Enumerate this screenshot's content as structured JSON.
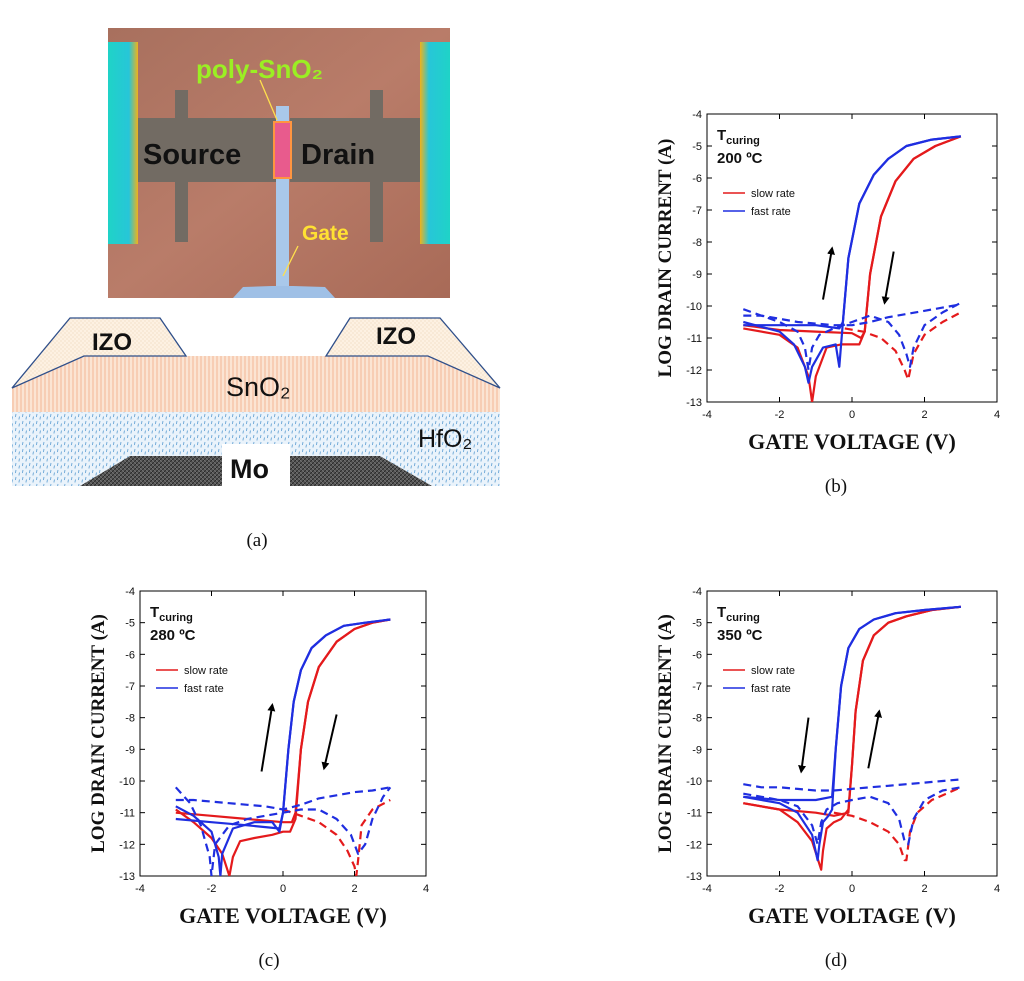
{
  "panel_a": {
    "micrograph": {
      "label_poly": "poly-SnO₂",
      "label_source": "Source",
      "label_drain": "Drain",
      "label_gate": "Gate"
    },
    "cross_section": {
      "label_izo_left": "IZO",
      "label_izo_right": "IZO",
      "label_sno2": "SnO₂",
      "label_hfo2": "HfO₂",
      "label_mo": "Mo"
    },
    "caption": "(a)"
  },
  "colors": {
    "slow": "#e41a1c",
    "fast": "#1f2ee0"
  },
  "chart_data": [
    {
      "id": "b",
      "type": "line",
      "caption": "(b)",
      "xlabel": "GATE VOLTAGE (V)",
      "ylabel": "LOG DRAIN CURRENT (A)",
      "xlim": [
        -4,
        4
      ],
      "ylim": [
        -13,
        -4
      ],
      "xticks": [
        "-4",
        "-2",
        "0",
        "2",
        "4"
      ],
      "yticks": [
        "-4",
        "-5",
        "-6",
        "-7",
        "-8",
        "-9",
        "-10",
        "-11",
        "-12",
        "-13"
      ],
      "annotation_title": "T",
      "annotation_sub": "curing",
      "annotation_temp": "200 ºC",
      "legend": [
        "slow rate",
        "fast rate"
      ],
      "arrows": [
        {
          "from": [
            -0.8,
            -9.8
          ],
          "to": [
            -0.55,
            -8.2
          ]
        },
        {
          "from": [
            1.15,
            -8.3
          ],
          "to": [
            0.9,
            -9.9
          ]
        }
      ],
      "series": [
        {
          "name": "slow up",
          "style": "solid",
          "color": "slow",
          "x": [
            -3,
            -2,
            -1.5,
            -1.2,
            -1.1,
            -1.0,
            -0.7,
            -0.3,
            0,
            0.2,
            0.35,
            0.5,
            0.8,
            1.2,
            1.7,
            2.3,
            3
          ],
          "y": [
            -10.7,
            -10.9,
            -11.3,
            -12.2,
            -13,
            -12.2,
            -11.3,
            -11.2,
            -11.2,
            -11.2,
            -10.8,
            -9,
            -7.2,
            -6.1,
            -5.4,
            -5.0,
            -4.7
          ]
        },
        {
          "name": "slow down",
          "style": "solid",
          "color": "slow",
          "x": [
            3,
            2.3,
            1.7,
            1.2,
            0.8,
            0.5,
            0.35,
            0.25,
            0,
            -1,
            -2,
            -3
          ],
          "y": [
            -4.7,
            -5.0,
            -5.4,
            -6.1,
            -7.2,
            -9,
            -10.8,
            -11.0,
            -10.85,
            -10.8,
            -10.75,
            -10.6
          ]
        },
        {
          "name": "slow dashed",
          "style": "dashed",
          "color": "slow",
          "x": [
            -0.2,
            0.3,
            0.8,
            1.2,
            1.45,
            1.55,
            1.7,
            2.0,
            2.5,
            3
          ],
          "y": [
            -10.7,
            -10.8,
            -11.0,
            -11.4,
            -12.0,
            -12.3,
            -11.5,
            -10.9,
            -10.5,
            -10.2
          ]
        },
        {
          "name": "fast up",
          "style": "solid",
          "color": "fast",
          "x": [
            -3,
            -2,
            -1.6,
            -1.3,
            -1.2,
            -1.1,
            -0.8,
            -0.45,
            -0.35,
            -0.25,
            -0.1,
            0.2,
            0.6,
            1,
            1.5,
            2.2,
            3
          ],
          "y": [
            -10.5,
            -10.8,
            -11.2,
            -11.9,
            -12.4,
            -11.9,
            -11.3,
            -11.2,
            -11.9,
            -10.5,
            -8.5,
            -6.8,
            -5.9,
            -5.4,
            -5.0,
            -4.8,
            -4.7
          ]
        },
        {
          "name": "fast down",
          "style": "solid",
          "color": "fast",
          "x": [
            3,
            2.2,
            1.5,
            1,
            0.6,
            0.2,
            -0.1,
            -0.25,
            -0.35,
            -1,
            -2,
            -3
          ],
          "y": [
            -4.7,
            -4.8,
            -5.0,
            -5.4,
            -5.9,
            -6.8,
            -8.5,
            -10.5,
            -10.7,
            -10.6,
            -10.6,
            -10.6
          ]
        },
        {
          "name": "fast dashed",
          "style": "dashed",
          "color": "fast",
          "x": [
            -3,
            -2.5,
            -2,
            -1.5,
            -1.3,
            -1.2,
            -1.1,
            -0.9,
            -0.5,
            0,
            0.5,
            1,
            1.3,
            1.5,
            1.6,
            1.7,
            2.0,
            2.5,
            3
          ],
          "y": [
            -10.1,
            -10.3,
            -10.5,
            -10.8,
            -11.3,
            -12.0,
            -11.3,
            -10.9,
            -10.7,
            -10.5,
            -10.3,
            -10.5,
            -10.9,
            -11.5,
            -11.9,
            -11.3,
            -10.6,
            -10.2,
            -9.9
          ]
        },
        {
          "name": "fast dashed top",
          "style": "dashed",
          "color": "fast",
          "x": [
            -3,
            -2.5,
            -2,
            -1.5,
            -1,
            -0.5,
            0,
            0.5,
            1,
            1.5,
            2,
            2.5,
            3
          ],
          "y": [
            -10.3,
            -10.3,
            -10.4,
            -10.5,
            -10.55,
            -10.6,
            -10.6,
            -10.5,
            -10.35,
            -10.25,
            -10.15,
            -10.05,
            -9.95
          ]
        }
      ]
    },
    {
      "id": "c",
      "type": "line",
      "caption": "(c)",
      "xlabel": "GATE VOLTAGE (V)",
      "ylabel": "LOG DRAIN CURRENT (A)",
      "xlim": [
        -4,
        4
      ],
      "ylim": [
        -13,
        -4
      ],
      "xticks": [
        "-4",
        "-2",
        "0",
        "2",
        "4"
      ],
      "yticks": [
        "-4",
        "-5",
        "-6",
        "-7",
        "-8",
        "-9",
        "-10",
        "-11",
        "-12",
        "-13"
      ],
      "annotation_title": "T",
      "annotation_sub": "curing",
      "annotation_temp": "280 ºC",
      "legend": [
        "slow rate",
        "fast rate"
      ],
      "arrows": [
        {
          "from": [
            -0.6,
            -9.7
          ],
          "to": [
            -0.3,
            -7.6
          ]
        },
        {
          "from": [
            1.5,
            -7.9
          ],
          "to": [
            1.15,
            -9.6
          ]
        }
      ],
      "series": [
        {
          "name": "slow up",
          "style": "solid",
          "color": "slow",
          "x": [
            -3,
            -2.5,
            -2,
            -1.7,
            -1.5,
            -1.4,
            -1.2,
            -0.8,
            -0.3,
            0,
            0.2,
            0.35,
            0.5,
            0.7,
            1,
            1.5,
            2,
            2.5,
            3
          ],
          "y": [
            -10.9,
            -11.3,
            -11.8,
            -12.3,
            -13,
            -12.4,
            -11.9,
            -11.8,
            -11.7,
            -11.6,
            -11.6,
            -11.2,
            -9.0,
            -7.5,
            -6.4,
            -5.6,
            -5.2,
            -5.0,
            -4.9
          ]
        },
        {
          "name": "slow down",
          "style": "solid",
          "color": "slow",
          "x": [
            3,
            2.5,
            2,
            1.5,
            1,
            0.7,
            0.5,
            0.35,
            0.25,
            0,
            -1,
            -2,
            -3
          ],
          "y": [
            -4.9,
            -5.0,
            -5.2,
            -5.6,
            -6.4,
            -7.5,
            -9.0,
            -11.0,
            -11.3,
            -11.3,
            -11.2,
            -11.1,
            -11.0
          ]
        },
        {
          "name": "slow dashed",
          "style": "dashed",
          "color": "slow",
          "x": [
            0,
            0.5,
            1,
            1.5,
            1.8,
            2.0,
            2.05,
            2.1,
            2.2,
            2.5,
            3
          ],
          "y": [
            -10.9,
            -11.1,
            -11.3,
            -11.7,
            -12.2,
            -12.7,
            -13,
            -12.5,
            -11.4,
            -10.9,
            -10.6
          ]
        },
        {
          "name": "fast up",
          "style": "solid",
          "color": "fast",
          "x": [
            -3,
            -2.5,
            -2,
            -1.8,
            -1.75,
            -1.7,
            -1.4,
            -0.8,
            -0.3,
            -0.1,
            0,
            0.15,
            0.3,
            0.5,
            0.8,
            1.2,
            1.7,
            2.3,
            3
          ],
          "y": [
            -10.8,
            -11.1,
            -11.6,
            -12.4,
            -13,
            -12.3,
            -11.5,
            -11.3,
            -11.3,
            -11.6,
            -11.0,
            -9.0,
            -7.5,
            -6.5,
            -5.8,
            -5.4,
            -5.1,
            -5.0,
            -4.9
          ]
        },
        {
          "name": "fast down",
          "style": "solid",
          "color": "fast",
          "x": [
            3,
            2.3,
            1.7,
            1.2,
            0.8,
            0.5,
            0.3,
            0.15,
            0,
            -0.1,
            -1,
            -2,
            -3
          ],
          "y": [
            -4.9,
            -5.0,
            -5.1,
            -5.4,
            -5.8,
            -6.5,
            -7.5,
            -9.0,
            -11.0,
            -11.5,
            -11.4,
            -11.3,
            -11.2
          ]
        },
        {
          "name": "fast dashed",
          "style": "dashed",
          "color": "fast",
          "x": [
            -3,
            -2.6,
            -2.3,
            -2.05,
            -2.0,
            -1.9,
            -1.5,
            -1,
            -0.5,
            0,
            0.5,
            1,
            1.5,
            1.9,
            2.1,
            2.3,
            2.5,
            2.8,
            3
          ],
          "y": [
            -10.2,
            -10.7,
            -11.4,
            -12.4,
            -13,
            -12.0,
            -11.4,
            -11.2,
            -11.1,
            -11.0,
            -10.9,
            -10.9,
            -11.2,
            -11.7,
            -12.3,
            -12.0,
            -11.2,
            -10.5,
            -10.2
          ]
        },
        {
          "name": "fast dashed top",
          "style": "dashed",
          "color": "fast",
          "x": [
            -3,
            -2.5,
            -2,
            -1.5,
            -1,
            -0.5,
            0,
            0.5,
            1,
            1.5,
            2,
            2.5,
            3
          ],
          "y": [
            -10.6,
            -10.6,
            -10.65,
            -10.7,
            -10.75,
            -10.8,
            -10.9,
            -10.75,
            -10.55,
            -10.45,
            -10.35,
            -10.3,
            -10.2
          ]
        }
      ]
    },
    {
      "id": "d",
      "type": "line",
      "caption": "(d)",
      "xlabel": "GATE VOLTAGE (V)",
      "ylabel": "LOG DRAIN CURRENT (A)",
      "xlim": [
        -4,
        4
      ],
      "ylim": [
        -13,
        -4
      ],
      "xticks": [
        "-4",
        "-2",
        "0",
        "2",
        "4"
      ],
      "yticks": [
        "-4",
        "-5",
        "-6",
        "-7",
        "-8",
        "-9",
        "-10",
        "-11",
        "-12",
        "-13"
      ],
      "annotation_title": "T",
      "annotation_sub": "curing",
      "annotation_temp": "350 ºC",
      "legend": [
        "slow rate",
        "fast rate"
      ],
      "arrows": [
        {
          "from": [
            -1.2,
            -8.0
          ],
          "to": [
            -1.4,
            -9.7
          ]
        },
        {
          "from": [
            0.45,
            -9.6
          ],
          "to": [
            0.75,
            -7.8
          ]
        }
      ],
      "series": [
        {
          "name": "slow up",
          "style": "solid",
          "color": "slow",
          "x": [
            -3,
            -2,
            -1.5,
            -1.1,
            -0.85,
            -0.8,
            -0.7,
            -0.5,
            -0.3,
            -0.1,
            0,
            0.1,
            0.3,
            0.6,
            1,
            1.5,
            2.2,
            3
          ],
          "y": [
            -10.7,
            -10.9,
            -11.3,
            -11.9,
            -12.8,
            -12.2,
            -11.5,
            -11.3,
            -11.2,
            -10.9,
            -9.5,
            -7.8,
            -6.2,
            -5.4,
            -5.0,
            -4.8,
            -4.6,
            -4.5
          ]
        },
        {
          "name": "slow down",
          "style": "solid",
          "color": "slow",
          "x": [
            3,
            2.2,
            1.5,
            1,
            0.6,
            0.3,
            0.1,
            0,
            -0.1,
            -0.5,
            -1,
            -2,
            -3
          ],
          "y": [
            -4.5,
            -4.6,
            -4.8,
            -5.0,
            -5.4,
            -6.2,
            -7.8,
            -9.5,
            -11.0,
            -11.1,
            -11.0,
            -10.9,
            -10.7
          ]
        },
        {
          "name": "slow dashed",
          "style": "dashed",
          "color": "slow",
          "x": [
            -0.5,
            0,
            0.5,
            1,
            1.3,
            1.45,
            1.5,
            1.6,
            1.8,
            2.2,
            2.6,
            3
          ],
          "y": [
            -11.0,
            -11.1,
            -11.3,
            -11.6,
            -12.0,
            -12.5,
            -12.5,
            -11.6,
            -11.0,
            -10.6,
            -10.4,
            -10.2
          ]
        },
        {
          "name": "fast up",
          "style": "solid",
          "color": "fast",
          "x": [
            -3,
            -2,
            -1.5,
            -1.1,
            -0.95,
            -0.9,
            -0.8,
            -0.65,
            -0.55,
            -0.45,
            -0.3,
            -0.1,
            0.2,
            0.6,
            1.2,
            2,
            3
          ],
          "y": [
            -10.5,
            -10.7,
            -11.0,
            -11.7,
            -12.5,
            -12.0,
            -11.3,
            -11.1,
            -10.9,
            -9.0,
            -7.0,
            -5.8,
            -5.2,
            -4.9,
            -4.7,
            -4.6,
            -4.5
          ]
        },
        {
          "name": "fast down",
          "style": "solid",
          "color": "fast",
          "x": [
            3,
            2,
            1.2,
            0.6,
            0.2,
            -0.1,
            -0.3,
            -0.45,
            -0.55,
            -1,
            -2,
            -3
          ],
          "y": [
            -4.5,
            -4.6,
            -4.7,
            -4.9,
            -5.2,
            -5.8,
            -7.0,
            -9.0,
            -10.5,
            -10.6,
            -10.6,
            -10.5
          ]
        },
        {
          "name": "fast dashed",
          "style": "dashed",
          "color": "fast",
          "x": [
            -3,
            -2.5,
            -2,
            -1.5,
            -1.1,
            -0.95,
            -0.85,
            -0.7,
            -0.4,
            0,
            0.5,
            1,
            1.3,
            1.45,
            1.55,
            1.7,
            2.0,
            2.5,
            3
          ],
          "y": [
            -10.4,
            -10.5,
            -10.6,
            -10.8,
            -11.4,
            -12.0,
            -11.3,
            -10.9,
            -10.7,
            -10.6,
            -10.5,
            -10.7,
            -11.2,
            -11.9,
            -12.0,
            -11.2,
            -10.6,
            -10.3,
            -10.2
          ]
        },
        {
          "name": "fast dashed top",
          "style": "dashed",
          "color": "fast",
          "x": [
            -3,
            -2.5,
            -2,
            -1.5,
            -1,
            -0.5,
            0,
            0.5,
            1,
            1.5,
            2,
            2.5,
            3
          ],
          "y": [
            -10.1,
            -10.2,
            -10.2,
            -10.25,
            -10.3,
            -10.3,
            -10.25,
            -10.2,
            -10.15,
            -10.1,
            -10.05,
            -10.0,
            -9.95
          ]
        }
      ]
    }
  ]
}
